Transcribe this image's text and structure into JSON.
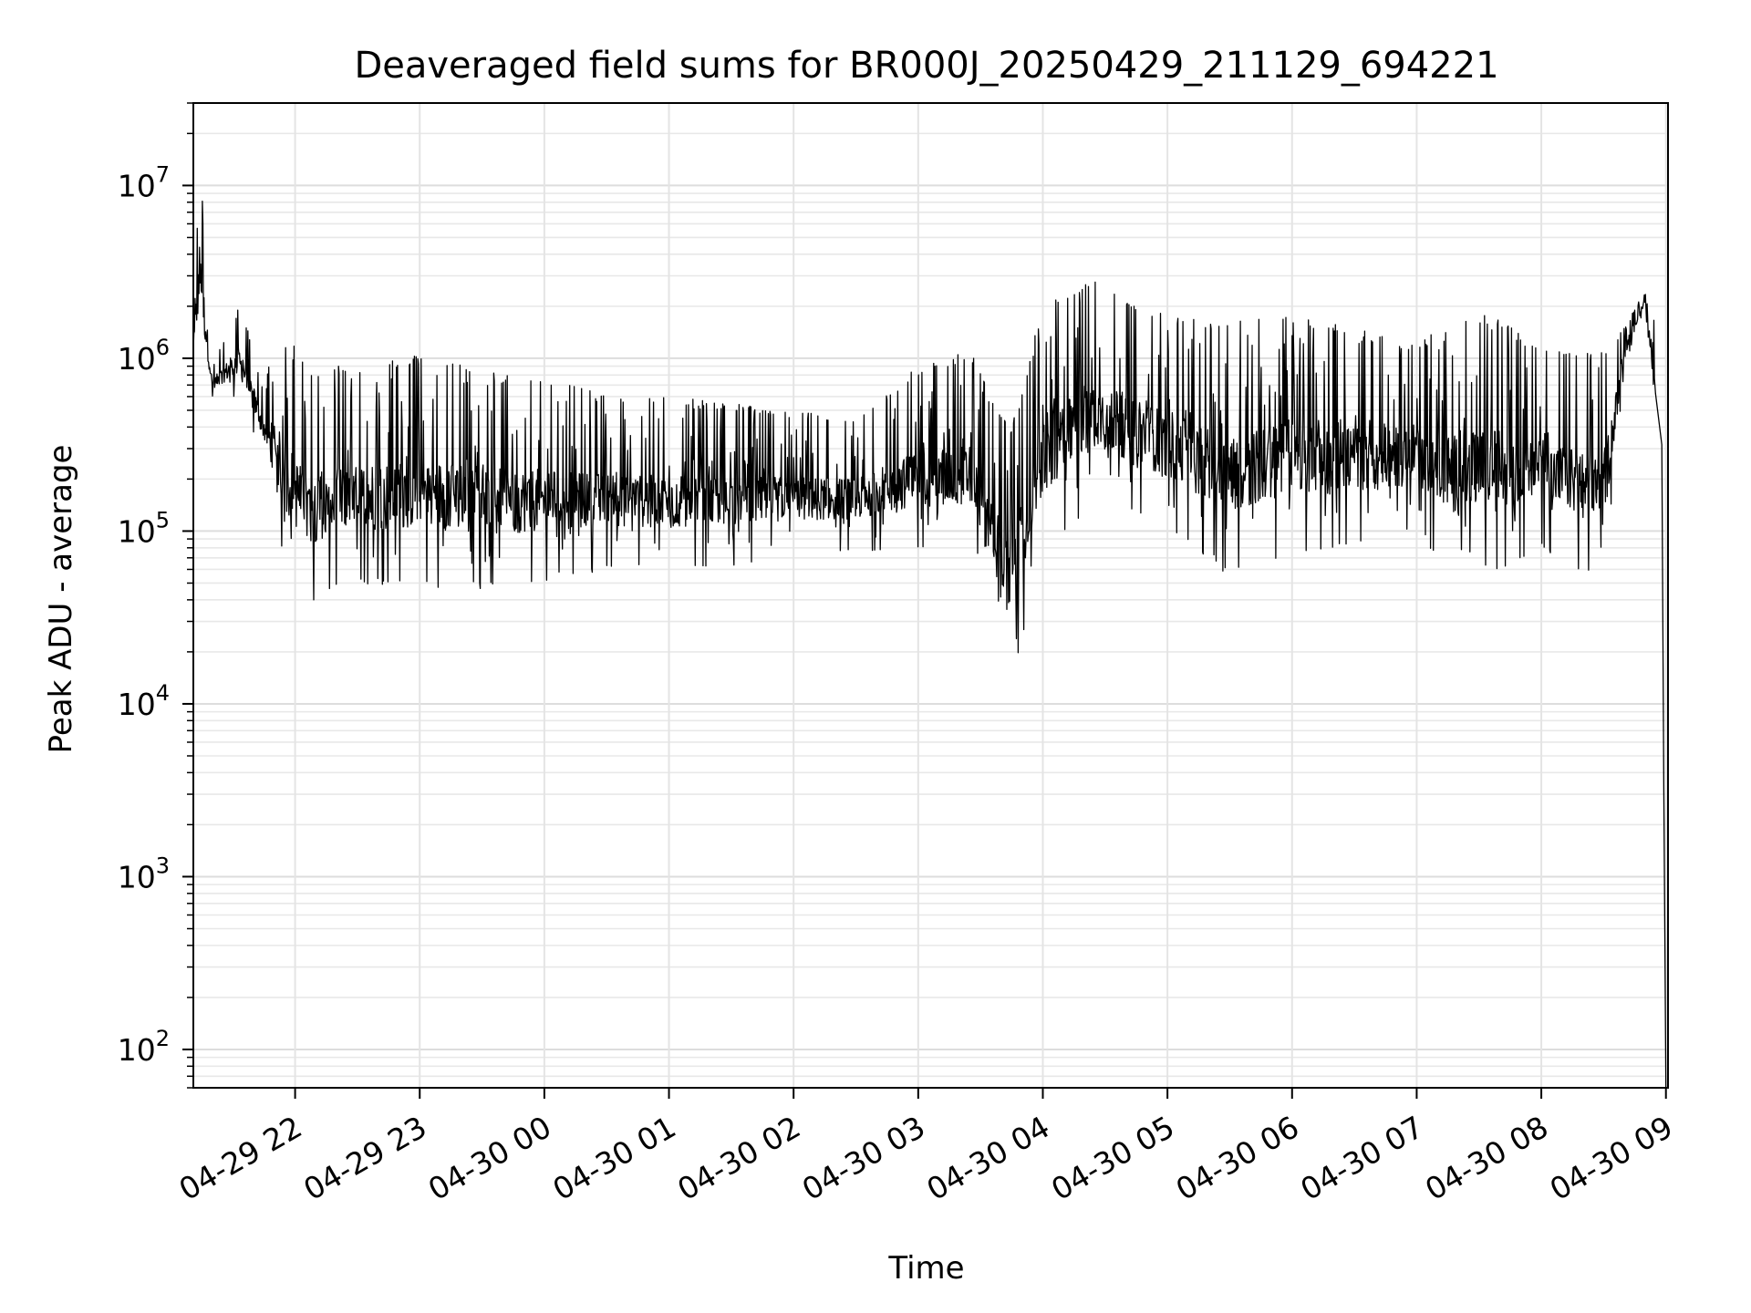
{
  "chart_data": {
    "type": "line",
    "title": "Deaveraged field sums for BR000J_20250429_211129_694221",
    "xlabel": "Time",
    "ylabel": "Peak ADU - average",
    "yscale": "log",
    "ylim": [
      60,
      30000000
    ],
    "xlim": [
      "04-29 21:11",
      "04-30 09:01"
    ],
    "grid": true,
    "legend": "none",
    "line_color": "#000000",
    "x_ticks": [
      "04-29 22",
      "04-29 23",
      "04-30 00",
      "04-30 01",
      "04-30 02",
      "04-30 03",
      "04-30 04",
      "04-30 05",
      "04-30 06",
      "04-30 07",
      "04-30 08",
      "04-30 09"
    ],
    "y_ticks": [
      {
        "base": "10",
        "exp": "2",
        "value": 100
      },
      {
        "base": "10",
        "exp": "3",
        "value": 1000
      },
      {
        "base": "10",
        "exp": "4",
        "value": 10000
      },
      {
        "base": "10",
        "exp": "5",
        "value": 100000
      },
      {
        "base": "10",
        "exp": "6",
        "value": 1000000
      },
      {
        "base": "10",
        "exp": "7",
        "value": 10000000
      }
    ],
    "series": [
      {
        "envelope": [
          {
            "x": "04-29 21:11",
            "low": 900000,
            "high": 1600000
          },
          {
            "x": "04-29 21:14",
            "low": 1000000,
            "high": 17000000
          },
          {
            "x": "04-29 21:20",
            "low": 600000,
            "high": 900000
          },
          {
            "x": "04-29 21:33",
            "low": 600000,
            "high": 2000000
          },
          {
            "x": "04-29 21:45",
            "low": 250000,
            "high": 800000
          },
          {
            "x": "04-29 21:55",
            "low": 60000,
            "high": 1500000
          },
          {
            "x": "04-29 22:05",
            "low": 38000,
            "high": 900000
          },
          {
            "x": "04-29 22:30",
            "low": 48000,
            "high": 900000
          },
          {
            "x": "04-29 23:00",
            "low": 48000,
            "high": 1100000
          },
          {
            "x": "04-29 23:30",
            "low": 45000,
            "high": 900000
          },
          {
            "x": "04-30 00:00",
            "low": 50000,
            "high": 800000
          },
          {
            "x": "04-30 00:30",
            "low": 60000,
            "high": 600000
          },
          {
            "x": "04-30 01:00",
            "low": 58000,
            "high": 600000
          },
          {
            "x": "04-30 01:30",
            "low": 62000,
            "high": 550000
          },
          {
            "x": "04-30 02:00",
            "low": 70000,
            "high": 500000
          },
          {
            "x": "04-30 02:30",
            "low": 75000,
            "high": 450000
          },
          {
            "x": "04-30 03:00",
            "low": 75000,
            "high": 900000
          },
          {
            "x": "04-30 03:25",
            "low": 70000,
            "high": 1100000
          },
          {
            "x": "04-30 03:45",
            "low": 13000,
            "high": 400000
          },
          {
            "x": "04-30 04:00",
            "low": 70000,
            "high": 2200000
          },
          {
            "x": "04-30 04:25",
            "low": 150000,
            "high": 2800000
          },
          {
            "x": "04-30 05:00",
            "low": 100000,
            "high": 1800000
          },
          {
            "x": "04-30 05:30",
            "low": 55000,
            "high": 1600000
          },
          {
            "x": "04-30 06:00",
            "low": 70000,
            "high": 2000000
          },
          {
            "x": "04-30 06:30",
            "low": 80000,
            "high": 1500000
          },
          {
            "x": "04-30 07:00",
            "low": 100000,
            "high": 1200000
          },
          {
            "x": "04-30 07:20",
            "low": 50000,
            "high": 1800000
          },
          {
            "x": "04-30 07:40",
            "low": 60000,
            "high": 1800000
          },
          {
            "x": "04-30 08:00",
            "low": 80000,
            "high": 1100000
          },
          {
            "x": "04-30 08:30",
            "low": 48000,
            "high": 1100000
          },
          {
            "x": "04-30 08:40",
            "low": 900000,
            "high": 1500000
          },
          {
            "x": "04-30 08:50",
            "low": 2000000,
            "high": 2500000
          },
          {
            "x": "04-30 08:55",
            "low": 400000,
            "high": 1600000
          },
          {
            "x": "04-30 09:00",
            "low": 60,
            "high": 300
          }
        ]
      }
    ]
  }
}
